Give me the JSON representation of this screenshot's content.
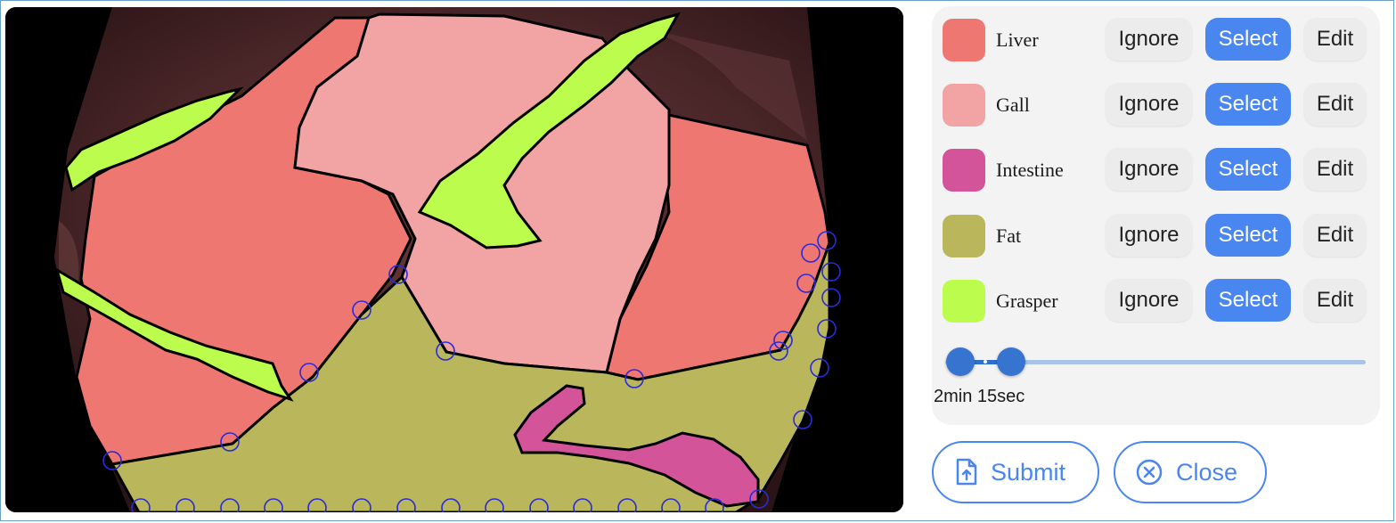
{
  "labels": [
    {
      "name": "Liver",
      "color": "#ee7772",
      "ignore": "Ignore",
      "select": "Select",
      "edit": "Edit"
    },
    {
      "name": "Gall",
      "color": "#f2a3a4",
      "ignore": "Ignore",
      "select": "Select",
      "edit": "Edit"
    },
    {
      "name": "Intestine",
      "color": "#d4549a",
      "ignore": "Ignore",
      "select": "Select",
      "edit": "Edit"
    },
    {
      "name": "Fat",
      "color": "#b9b65b",
      "ignore": "Ignore",
      "select": "Select",
      "edit": "Edit"
    },
    {
      "name": "Grasper",
      "color": "#bcfc4c",
      "ignore": "Ignore",
      "select": "Select",
      "edit": "Edit"
    }
  ],
  "slider": {
    "start_fraction": 0.035,
    "end_fraction": 0.157
  },
  "time_label": "2min 15sec",
  "actions": {
    "submit": "Submit",
    "close": "Close"
  },
  "colors": {
    "accent": "#4a86f0",
    "vertex_handle": "#2a2ad8"
  }
}
